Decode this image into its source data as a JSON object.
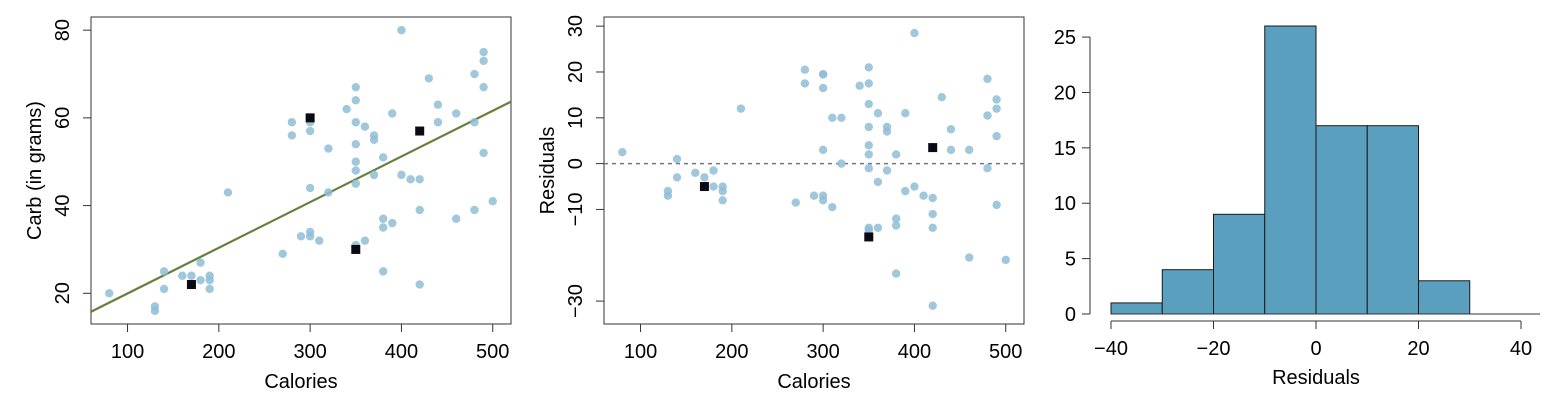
{
  "colors": {
    "point": "#8fbdd6",
    "point_highlight": "#0a0a14",
    "fit_line": "#63803a",
    "zero_line": "#777777",
    "bar_fill": "#5a9fbd",
    "bar_stroke": "#1a1a1a"
  },
  "chart_data": [
    {
      "type": "scatter",
      "xlabel": "Calories",
      "ylabel": "Carb (in grams)",
      "xlim": [
        60,
        520
      ],
      "ylim": [
        13,
        83
      ],
      "xticks": [
        100,
        200,
        300,
        400,
        500
      ],
      "yticks": [
        20,
        40,
        60,
        80
      ],
      "grid": false,
      "fit_line": {
        "x": [
          60,
          520
        ],
        "y": [
          15.8,
          63.7
        ]
      },
      "series": [
        {
          "role": "points",
          "x": [
            80,
            130,
            130,
            140,
            140,
            160,
            170,
            180,
            180,
            190,
            190,
            190,
            210,
            270,
            280,
            280,
            290,
            300,
            300,
            300,
            300,
            300,
            310,
            320,
            320,
            340,
            350,
            350,
            350,
            350,
            350,
            350,
            350,
            350,
            350,
            360,
            360,
            370,
            370,
            370,
            380,
            380,
            380,
            380,
            390,
            390,
            400,
            400,
            410,
            420,
            420,
            420,
            430,
            440,
            440,
            460,
            460,
            480,
            480,
            480,
            490,
            490,
            490,
            490,
            500
          ],
          "y": [
            20,
            16,
            17,
            21,
            25,
            24,
            24,
            23,
            27,
            21,
            23,
            24,
            43,
            29,
            56,
            59,
            33,
            33,
            34,
            44,
            57,
            59,
            32,
            43,
            53,
            62,
            31,
            45,
            48,
            50,
            54,
            59,
            64,
            67,
            30,
            32,
            58,
            47,
            55,
            56,
            25,
            35,
            37,
            51,
            36,
            61,
            47,
            80,
            46,
            22,
            39,
            46,
            69,
            59,
            63,
            37,
            61,
            39,
            59,
            70,
            52,
            67,
            73,
            75,
            41
          ]
        },
        {
          "role": "highlighted",
          "x": [
            170,
            300,
            350,
            420
          ],
          "y": [
            22,
            60,
            30,
            57
          ]
        }
      ]
    },
    {
      "type": "scatter",
      "xlabel": "Calories",
      "ylabel": "Residuals",
      "xlim": [
        60,
        520
      ],
      "ylim": [
        -35,
        32
      ],
      "xticks": [
        100,
        200,
        300,
        400,
        500
      ],
      "yticks": [
        -30,
        -10,
        0,
        10,
        20,
        30
      ],
      "grid": false,
      "reference_line_y": 0,
      "series": [
        {
          "role": "points",
          "x": [
            80,
            130,
            130,
            140,
            140,
            160,
            170,
            180,
            180,
            190,
            190,
            190,
            210,
            270,
            280,
            280,
            290,
            300,
            300,
            300,
            300,
            300,
            300,
            310,
            310,
            320,
            320,
            340,
            350,
            350,
            350,
            350,
            350,
            350,
            350,
            350,
            350,
            360,
            360,
            360,
            370,
            370,
            370,
            380,
            380,
            380,
            380,
            390,
            390,
            400,
            400,
            410,
            420,
            420,
            420,
            420,
            430,
            440,
            440,
            460,
            460,
            480,
            480,
            480,
            490,
            490,
            490,
            490,
            500
          ],
          "y": [
            2.5,
            -7,
            -6,
            -3,
            1,
            -2,
            -3,
            -1.5,
            -5,
            -5,
            -6,
            -8,
            12,
            -8.5,
            17.5,
            20.5,
            -7,
            -8,
            -7,
            3,
            16.5,
            19.5,
            19.5,
            -9.5,
            10,
            0,
            10,
            17,
            -14.5,
            -1,
            2,
            4,
            8,
            13,
            17.5,
            21,
            -14,
            -4,
            11,
            -14,
            -1.5,
            7,
            8,
            -12,
            -13.5,
            -24,
            2,
            -6,
            11,
            -5,
            28.5,
            -7,
            -31,
            -7.5,
            -11,
            -14,
            14.5,
            3,
            7.5,
            -20.5,
            3,
            -1,
            10.5,
            18.5,
            -9,
            6,
            12,
            14,
            -21
          ]
        },
        {
          "role": "highlighted",
          "x": [
            170,
            350,
            420
          ],
          "y": [
            -5,
            -16,
            3.5
          ]
        }
      ]
    },
    {
      "type": "bar",
      "xlabel": "Residuals",
      "ylabel": "",
      "xlim": [
        -40,
        40
      ],
      "ylim": [
        0,
        26
      ],
      "xticks": [
        -40,
        -20,
        0,
        20,
        40
      ],
      "yticks": [
        0,
        5,
        10,
        15,
        20,
        25
      ],
      "bin_edges": [
        -40,
        -30,
        -20,
        -10,
        0,
        10,
        20,
        30
      ],
      "values": [
        1,
        4,
        9,
        26,
        17,
        17,
        3
      ]
    }
  ]
}
